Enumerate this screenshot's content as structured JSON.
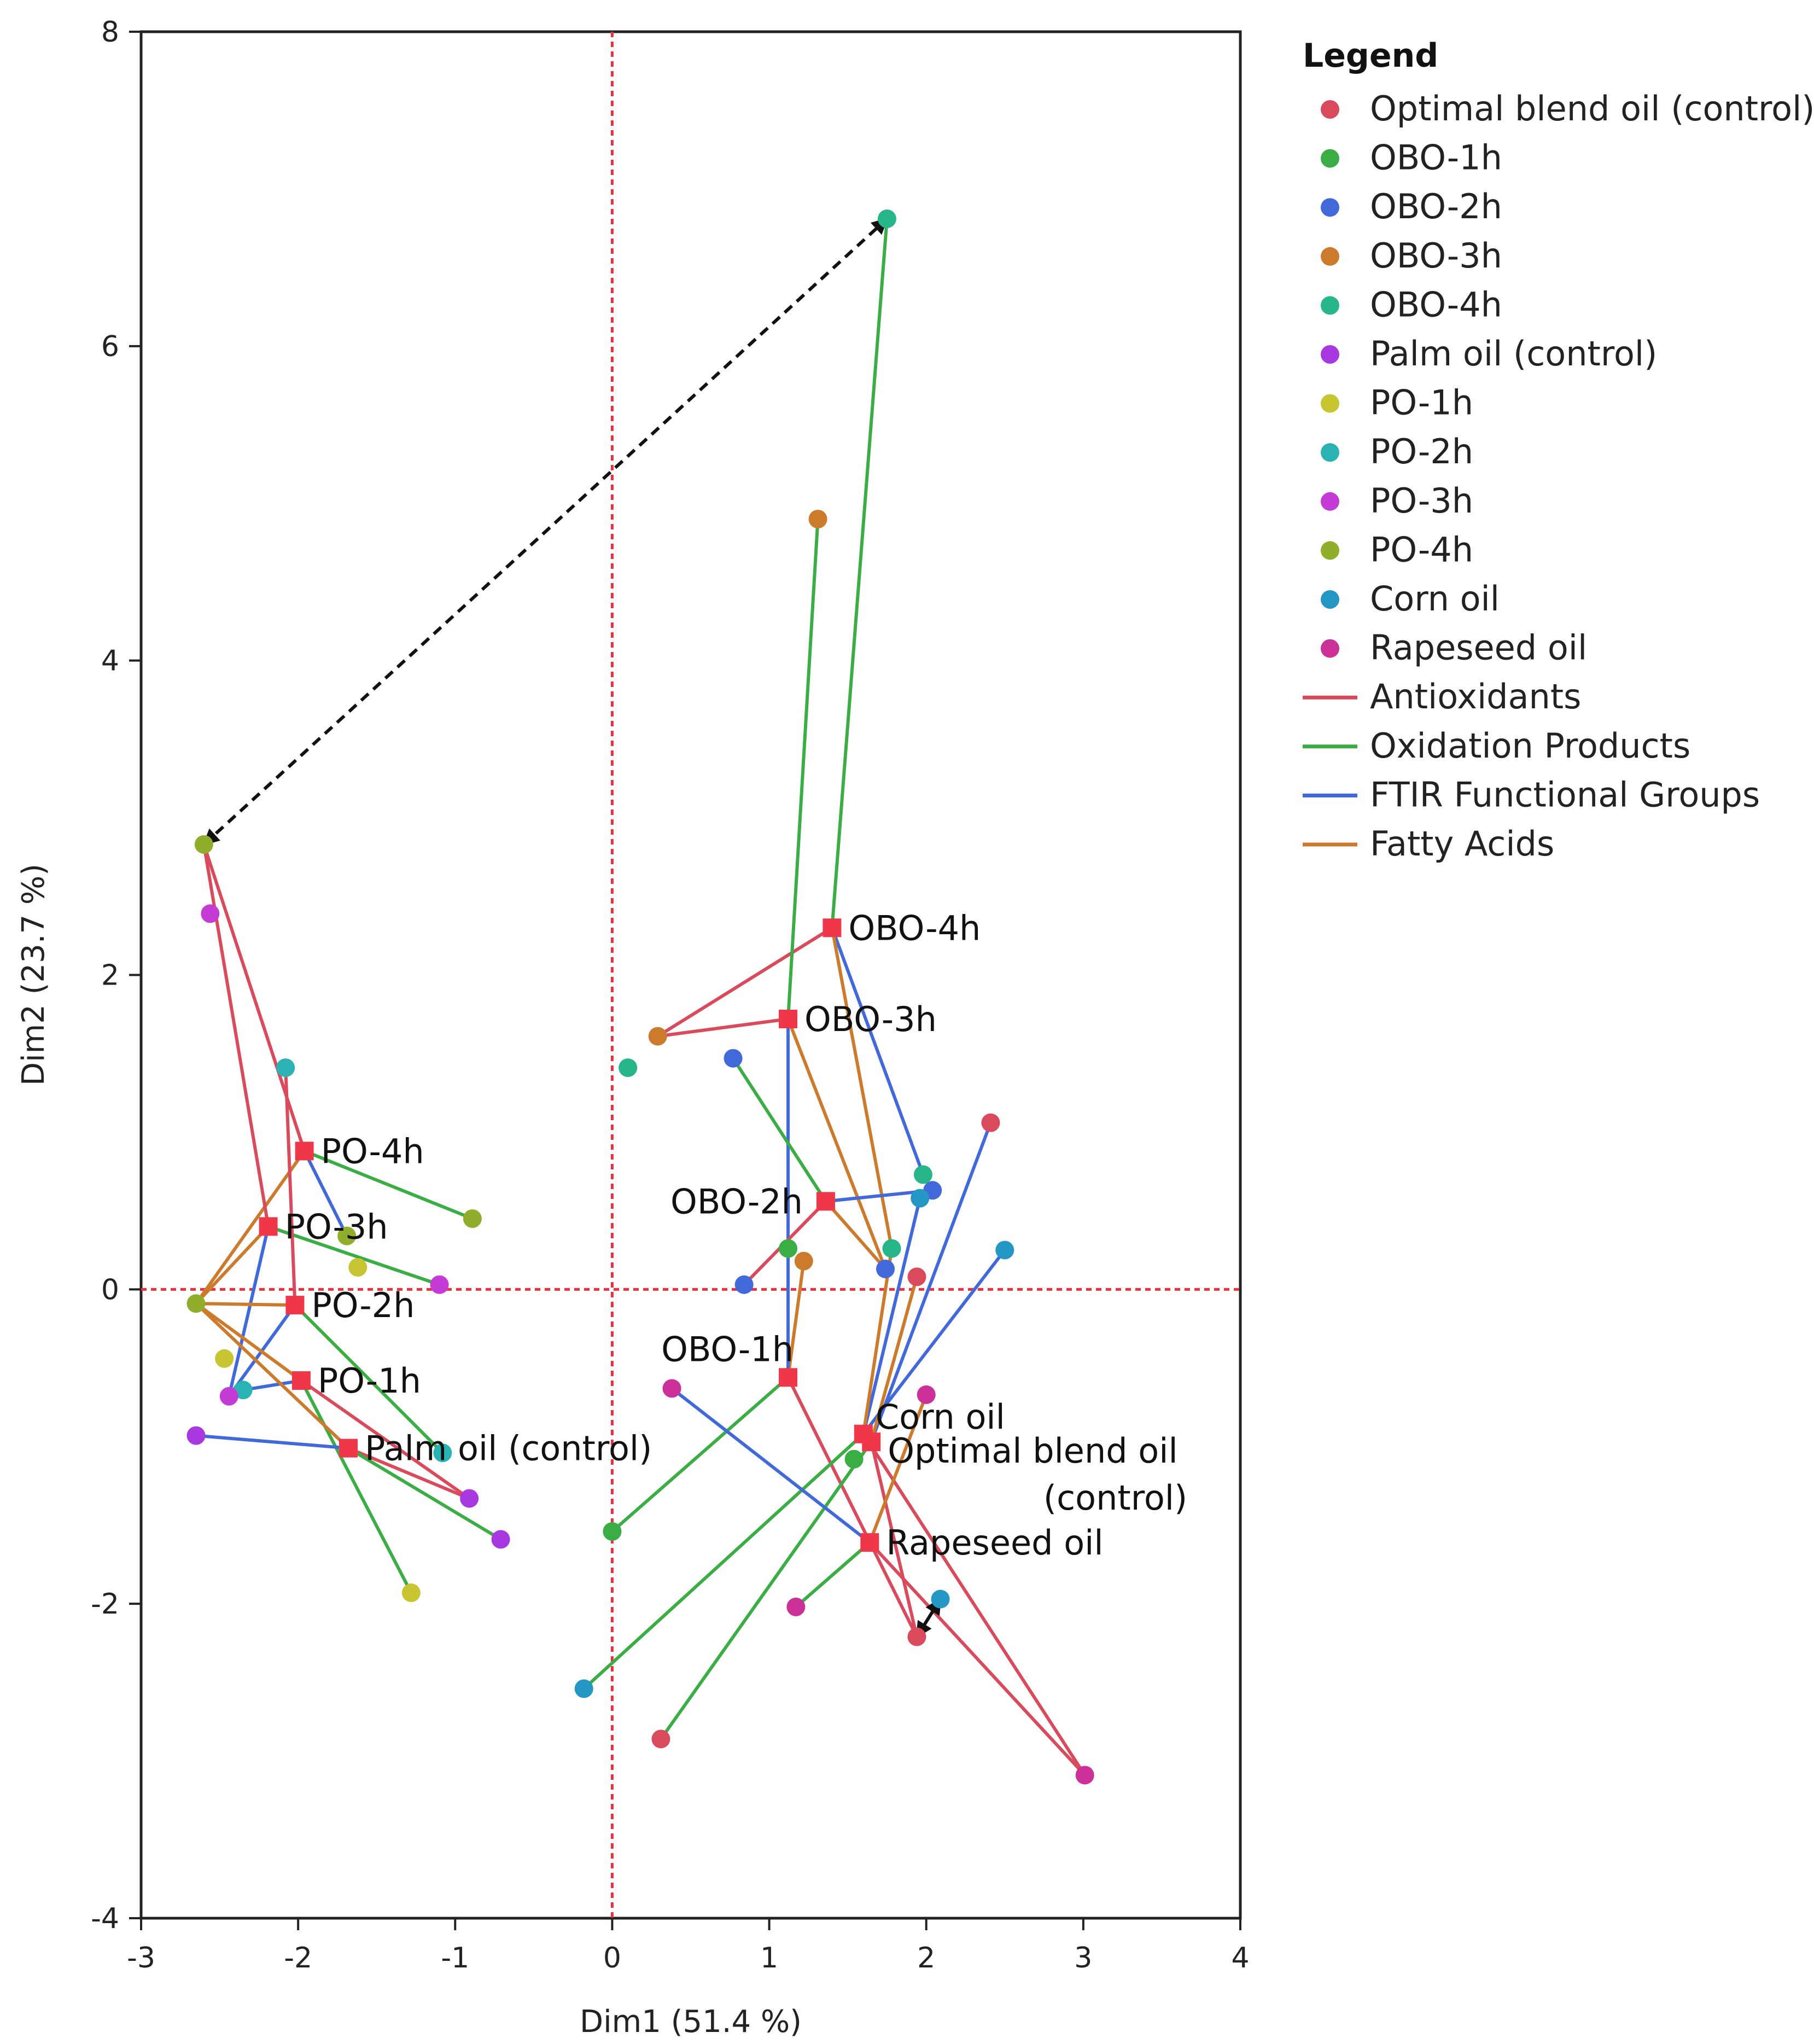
{
  "chart_data": {
    "type": "scatter",
    "title": "",
    "xlabel": "Dim1  (51.4 %)",
    "ylabel": "Dim2  (23.7 %)",
    "xlim": [
      -3,
      4
    ],
    "ylim": [
      -4,
      8
    ],
    "xticks": [
      "-3",
      "-2",
      "-1",
      "0",
      "1",
      "2",
      "3",
      "4"
    ],
    "yticks": [
      "-4",
      "-2",
      "0",
      "2",
      "4",
      "6",
      "8"
    ],
    "reference_lines": {
      "x": 0,
      "y": 0,
      "color": "#e8313f"
    },
    "legend_title": "Legend",
    "point_groups": [
      {
        "name": "Optimal blend oil (control)",
        "color": "#d94a5c",
        "points": [
          [
            2.41,
            1.06
          ],
          [
            1.94,
            0.08
          ],
          [
            0.31,
            -2.86
          ],
          [
            1.94,
            -2.21
          ]
        ]
      },
      {
        "name": "OBO-1h",
        "color": "#3aad44",
        "points": [
          [
            1.12,
            0.26
          ],
          [
            1.54,
            -1.08
          ],
          [
            0.0,
            -1.54
          ]
        ]
      },
      {
        "name": "OBO-2h",
        "color": "#4169d9",
        "points": [
          [
            0.77,
            1.47
          ],
          [
            2.04,
            0.63
          ],
          [
            0.84,
            0.03
          ],
          [
            1.74,
            0.13
          ]
        ]
      },
      {
        "name": "OBO-3h",
        "color": "#cc7a2c",
        "points": [
          [
            1.31,
            4.9
          ],
          [
            0.29,
            1.61
          ],
          [
            1.22,
            0.18
          ]
        ]
      },
      {
        "name": "OBO-4h",
        "color": "#27b58a",
        "points": [
          [
            1.75,
            6.81
          ],
          [
            0.1,
            1.41
          ],
          [
            1.98,
            0.73
          ],
          [
            1.78,
            0.26
          ]
        ]
      },
      {
        "name": "Palm oil (control)",
        "color": "#a838e0",
        "points": [
          [
            -2.65,
            -0.93
          ],
          [
            -0.91,
            -1.33
          ],
          [
            -0.71,
            -1.59
          ]
        ]
      },
      {
        "name": "PO-1h",
        "color": "#c8c532",
        "points": [
          [
            -1.62,
            0.14
          ],
          [
            -2.47,
            -0.44
          ],
          [
            -1.28,
            -1.93
          ]
        ]
      },
      {
        "name": "PO-2h",
        "color": "#2bb3b3",
        "points": [
          [
            -2.08,
            1.41
          ],
          [
            -2.35,
            -0.64
          ],
          [
            -1.08,
            -1.04
          ]
        ]
      },
      {
        "name": "PO-3h",
        "color": "#c43bd6",
        "points": [
          [
            -2.56,
            2.39
          ],
          [
            -1.1,
            0.03
          ],
          [
            -2.44,
            -0.68
          ]
        ]
      },
      {
        "name": "PO-4h",
        "color": "#8fae2c",
        "points": [
          [
            -2.6,
            2.83
          ],
          [
            -0.89,
            0.45
          ],
          [
            -1.69,
            0.34
          ],
          [
            -2.65,
            -0.09
          ]
        ]
      },
      {
        "name": "Corn oil",
        "color": "#2497c4",
        "points": [
          [
            2.5,
            0.25
          ],
          [
            -0.18,
            -2.54
          ],
          [
            2.09,
            -1.97
          ],
          [
            1.96,
            0.58
          ]
        ]
      },
      {
        "name": "Rapeseed oil",
        "color": "#cc3099",
        "points": [
          [
            0.38,
            -0.63
          ],
          [
            2.0,
            -0.67
          ],
          [
            1.17,
            -2.02
          ],
          [
            3.01,
            -3.09
          ]
        ]
      }
    ],
    "line_categories": [
      {
        "name": "Antioxidants",
        "color": "#d94a5c"
      },
      {
        "name": "Oxidation Products",
        "color": "#3aad44"
      },
      {
        "name": "FTIR Functional Groups",
        "color": "#4169d9"
      },
      {
        "name": "Fatty Acids",
        "color": "#cc7a2c"
      }
    ],
    "sample_centers": [
      {
        "label": "OBO-4h",
        "x": 1.4,
        "y": 2.3
      },
      {
        "label": "OBO-3h",
        "x": 1.12,
        "y": 1.72
      },
      {
        "label": "OBO-2h",
        "x": 1.36,
        "y": 0.56
      },
      {
        "label": "OBO-1h",
        "x": 1.12,
        "y": -0.56
      },
      {
        "label": "Corn oil",
        "x": 1.6,
        "y": -0.92
      },
      {
        "label": "Optimal blend oil (control)",
        "x": 1.65,
        "y": -0.97
      },
      {
        "label": "Rapeseed oil",
        "x": 1.64,
        "y": -1.61
      },
      {
        "label": "PO-4h",
        "x": -1.96,
        "y": 0.88
      },
      {
        "label": "PO-3h",
        "x": -2.19,
        "y": 0.4
      },
      {
        "label": "PO-2h",
        "x": -2.02,
        "y": -0.1
      },
      {
        "label": "PO-1h",
        "x": -1.98,
        "y": -0.58
      },
      {
        "label": "Palm oil (control)",
        "x": -1.68,
        "y": -1.01
      }
    ],
    "connections": [
      {
        "from": "OBO-4h",
        "to": [
          1.75,
          6.81
        ],
        "type": "Oxidation Products"
      },
      {
        "from": "OBO-4h",
        "to": [
          0.29,
          1.61
        ],
        "type": "Antioxidants"
      },
      {
        "from": "OBO-4h",
        "to": [
          1.98,
          0.73
        ],
        "type": "FTIR Functional Groups"
      },
      {
        "from": "OBO-4h",
        "to": [
          1.78,
          0.26
        ],
        "type": "Fatty Acids"
      },
      {
        "from": "OBO-3h",
        "to": [
          1.31,
          4.9
        ],
        "type": "Oxidation Products"
      },
      {
        "from": "OBO-3h",
        "to": [
          0.29,
          1.61
        ],
        "type": "Antioxidants"
      },
      {
        "from": "OBO-3h",
        "to": [
          1.74,
          0.13
        ],
        "type": "Fatty Acids"
      },
      {
        "from": "OBO-3h",
        "to": [
          1.12,
          0.26
        ],
        "type": "FTIR Functional Groups"
      },
      {
        "from": "OBO-2h",
        "to": [
          0.77,
          1.47
        ],
        "type": "Oxidation Products"
      },
      {
        "from": "OBO-2h",
        "to": [
          2.04,
          0.63
        ],
        "type": "FTIR Functional Groups"
      },
      {
        "from": "OBO-2h",
        "to": [
          0.84,
          0.03
        ],
        "type": "Antioxidants"
      },
      {
        "from": "OBO-2h",
        "to": [
          1.74,
          0.13
        ],
        "type": "Fatty Acids"
      },
      {
        "from": "OBO-1h",
        "to": [
          1.22,
          0.18
        ],
        "type": "Fatty Acids"
      },
      {
        "from": "OBO-1h",
        "to": [
          1.12,
          0.26
        ],
        "type": "FTIR Functional Groups"
      },
      {
        "from": "OBO-1h",
        "to": [
          0.0,
          -1.54
        ],
        "type": "Oxidation Products"
      },
      {
        "from": "OBO-1h",
        "to": [
          1.94,
          -2.21
        ],
        "type": "Antioxidants"
      },
      {
        "from": "Corn oil",
        "to": [
          2.5,
          0.25
        ],
        "type": "FTIR Functional Groups"
      },
      {
        "from": "Corn oil",
        "to": [
          1.96,
          0.58
        ],
        "type": "FTIR Functional Groups"
      },
      {
        "from": "Corn oil",
        "to": [
          1.78,
          0.26
        ],
        "type": "Fatty Acids"
      },
      {
        "from": "Corn oil",
        "to": [
          -0.18,
          -2.54
        ],
        "type": "Oxidation Products"
      },
      {
        "from": "Corn oil",
        "to": [
          3.01,
          -3.09
        ],
        "type": "Antioxidants"
      },
      {
        "from": "Optimal blend oil (control)",
        "to": [
          2.41,
          1.06
        ],
        "type": "FTIR Functional Groups"
      },
      {
        "from": "Optimal blend oil (control)",
        "to": [
          1.94,
          0.08
        ],
        "type": "Fatty Acids"
      },
      {
        "from": "Optimal blend oil (control)",
        "to": [
          0.31,
          -2.86
        ],
        "type": "Oxidation Products"
      },
      {
        "from": "Optimal blend oil (control)",
        "to": [
          1.94,
          -2.21
        ],
        "type": "Antioxidants"
      },
      {
        "from": "Rapeseed oil",
        "to": [
          0.38,
          -0.63
        ],
        "type": "FTIR Functional Groups"
      },
      {
        "from": "Rapeseed oil",
        "to": [
          1.17,
          -2.02
        ],
        "type": "Oxidation Products"
      },
      {
        "from": "Rapeseed oil",
        "to": [
          2.0,
          -0.67
        ],
        "type": "Fatty Acids"
      },
      {
        "from": "Rapeseed oil",
        "to": [
          3.01,
          -3.09
        ],
        "type": "Antioxidants"
      },
      {
        "from": "PO-4h",
        "to": [
          -2.6,
          2.83
        ],
        "type": "Antioxidants"
      },
      {
        "from": "PO-4h",
        "to": [
          -0.89,
          0.45
        ],
        "type": "Oxidation Products"
      },
      {
        "from": "PO-4h",
        "to": [
          -1.69,
          0.34
        ],
        "type": "FTIR Functional Groups"
      },
      {
        "from": "PO-4h",
        "to": [
          -2.65,
          -0.09
        ],
        "type": "Fatty Acids"
      },
      {
        "from": "PO-3h",
        "to": [
          -2.6,
          2.83
        ],
        "type": "Antioxidants"
      },
      {
        "from": "PO-3h",
        "to": [
          -1.1,
          0.03
        ],
        "type": "Oxidation Products"
      },
      {
        "from": "PO-3h",
        "to": [
          -2.65,
          -0.09
        ],
        "type": "Fatty Acids"
      },
      {
        "from": "PO-3h",
        "to": [
          -2.44,
          -0.68
        ],
        "type": "FTIR Functional Groups"
      },
      {
        "from": "PO-2h",
        "to": [
          -2.08,
          1.41
        ],
        "type": "Antioxidants"
      },
      {
        "from": "PO-2h",
        "to": [
          -2.65,
          -0.09
        ],
        "type": "Fatty Acids"
      },
      {
        "from": "PO-2h",
        "to": [
          -2.44,
          -0.68
        ],
        "type": "FTIR Functional Groups"
      },
      {
        "from": "PO-2h",
        "to": [
          -1.08,
          -1.04
        ],
        "type": "Oxidation Products"
      },
      {
        "from": "PO-1h",
        "to": [
          -2.65,
          -0.09
        ],
        "type": "Fatty Acids"
      },
      {
        "from": "PO-1h",
        "to": [
          -2.35,
          -0.64
        ],
        "type": "FTIR Functional Groups"
      },
      {
        "from": "PO-1h",
        "to": [
          -0.91,
          -1.33
        ],
        "type": "Antioxidants"
      },
      {
        "from": "PO-1h",
        "to": [
          -1.28,
          -1.93
        ],
        "type": "Oxidation Products"
      },
      {
        "from": "Palm oil (control)",
        "to": [
          -2.65,
          -0.93
        ],
        "type": "FTIR Functional Groups"
      },
      {
        "from": "Palm oil (control)",
        "to": [
          -2.65,
          -0.09
        ],
        "type": "Fatty Acids"
      },
      {
        "from": "Palm oil (control)",
        "to": [
          -0.91,
          -1.33
        ],
        "type": "Antioxidants"
      },
      {
        "from": "Palm oil (control)",
        "to": [
          -0.71,
          -1.59
        ],
        "type": "Oxidation Products"
      }
    ],
    "arrows": [
      {
        "from": [
          -2.6,
          2.83
        ],
        "to": [
          1.75,
          6.81
        ],
        "style": "dashed"
      },
      {
        "from": [
          1.94,
          -2.21
        ],
        "to": [
          2.09,
          -1.97
        ],
        "style": "solid"
      }
    ]
  }
}
